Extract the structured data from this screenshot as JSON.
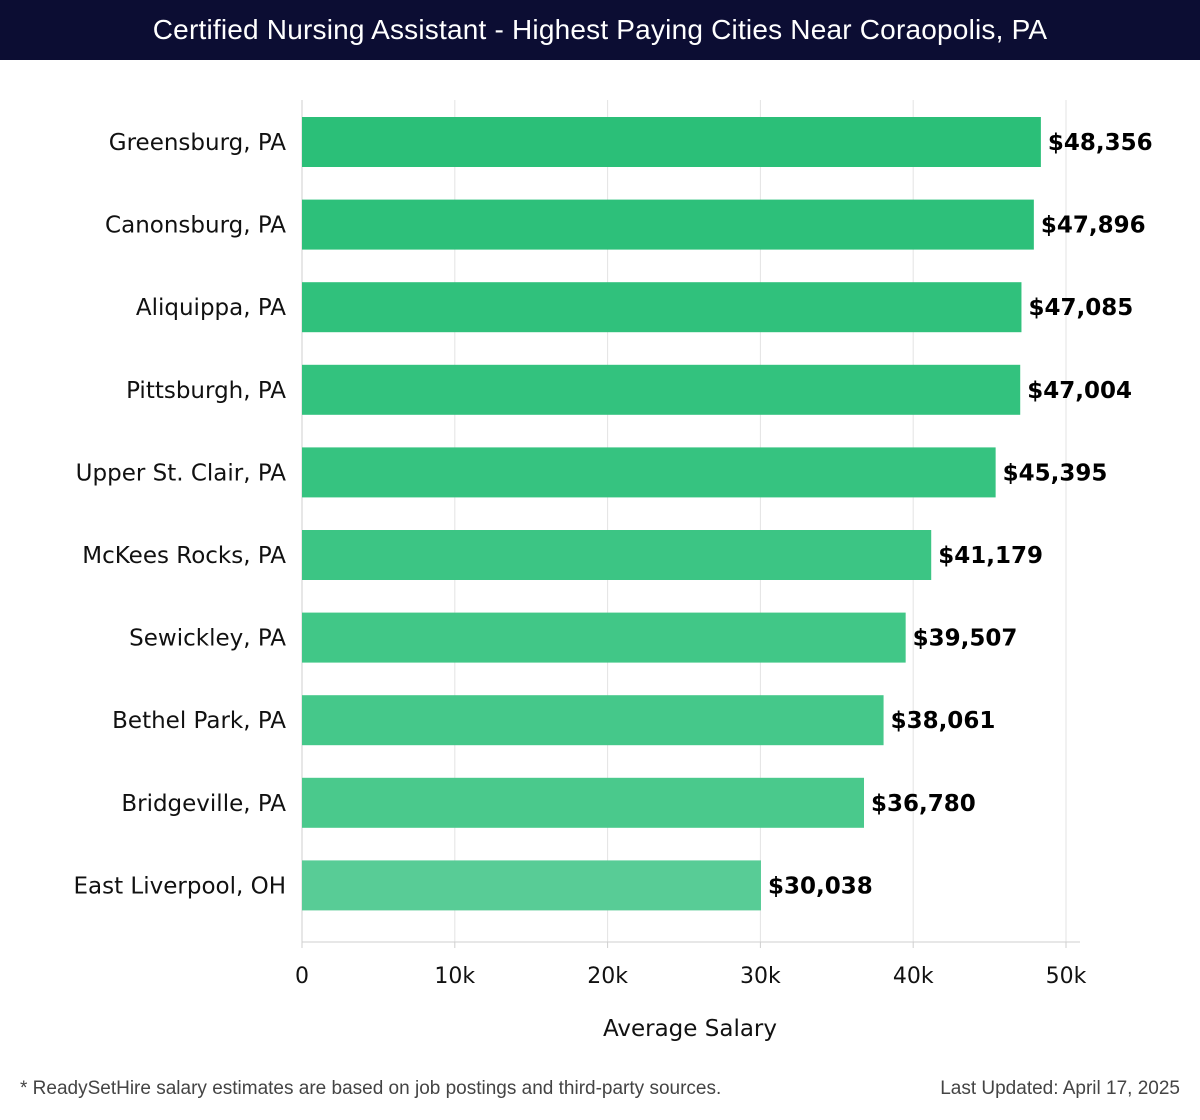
{
  "header": {
    "title": "Certified Nursing Assistant - Highest Paying Cities Near Coraopolis, PA"
  },
  "chart_data": {
    "type": "bar",
    "orientation": "horizontal",
    "title": "Certified Nursing Assistant - Highest Paying Cities Near Coraopolis, PA",
    "xlabel": "Average Salary",
    "ylabel": "",
    "xlim": [
      0,
      50000
    ],
    "x_ticks": [
      0,
      10000,
      20000,
      30000,
      40000,
      50000
    ],
    "x_tick_labels": [
      "0",
      "10k",
      "20k",
      "30k",
      "40k",
      "50k"
    ],
    "grid": true,
    "categories": [
      "Greensburg, PA",
      "Canonsburg, PA",
      "Aliquippa, PA",
      "Pittsburgh, PA",
      "Upper St. Clair, PA",
      "McKees Rocks, PA",
      "Sewickley, PA",
      "Bethel Park, PA",
      "Bridgeville, PA",
      "East Liverpool, OH"
    ],
    "values": [
      48356,
      47896,
      47085,
      47004,
      45395,
      41179,
      39507,
      38061,
      36780,
      30038
    ],
    "value_labels": [
      "$48,356",
      "$47,896",
      "$47,085",
      "$47,004",
      "$45,395",
      "$41,179",
      "$39,507",
      "$38,061",
      "$36,780",
      "$30,038"
    ],
    "bar_colors": [
      "#2bbf78",
      "#2dc07a",
      "#30c17c",
      "#33c27e",
      "#36c380",
      "#3cc584",
      "#41c787",
      "#45c88a",
      "#4ac98c",
      "#58cc96"
    ]
  },
  "footer": {
    "note": "* ReadySetHire salary estimates are based on job postings and third-party sources.",
    "updated": "Last Updated: April 17, 2025"
  }
}
